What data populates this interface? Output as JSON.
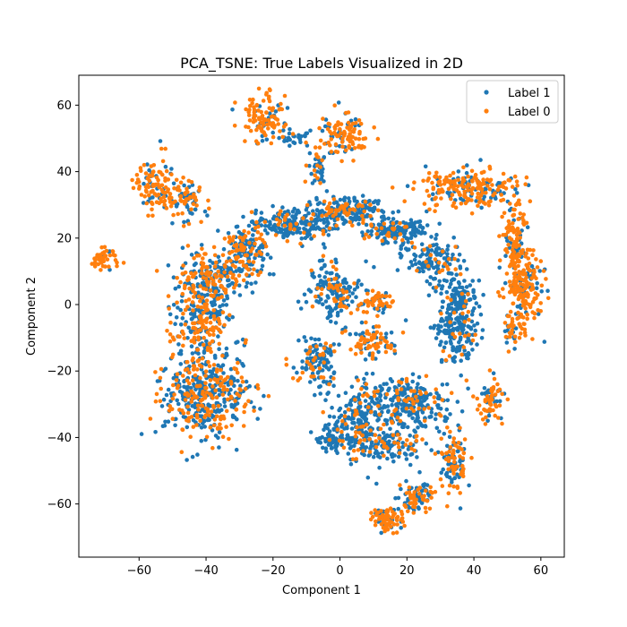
{
  "chart_data": {
    "type": "scatter",
    "title": "PCA_TSNE: True Labels Visualized in 2D",
    "xlabel": "Component 1",
    "ylabel": "Component 2",
    "xlim": [
      -78,
      67
    ],
    "ylim": [
      -76,
      69
    ],
    "xticks": [
      -60,
      -40,
      -20,
      0,
      20,
      40,
      60
    ],
    "yticks": [
      -60,
      -40,
      -20,
      0,
      20,
      40,
      60
    ],
    "grid": false,
    "legend_position": "top-right",
    "legend": [
      {
        "name": "Label 1",
        "color": "#1f77b4"
      },
      {
        "name": "Label 0",
        "color": "#ff7f0e"
      }
    ],
    "clusters": [
      {
        "cx": -70,
        "cy": 14,
        "rx": 3,
        "ry": 3,
        "n": 45,
        "blue_frac": 0.1
      },
      {
        "cx": -55,
        "cy": 36,
        "rx": 5,
        "ry": 7,
        "n": 110,
        "blue_frac": 0.25
      },
      {
        "cx": -46,
        "cy": 32,
        "rx": 4,
        "ry": 5,
        "n": 80,
        "blue_frac": 0.45
      },
      {
        "cx": -22,
        "cy": 56,
        "rx": 5,
        "ry": 5,
        "n": 110,
        "blue_frac": 0.2
      },
      {
        "cx": -14,
        "cy": 50,
        "rx": 4,
        "ry": 2,
        "n": 30,
        "blue_frac": 0.7
      },
      {
        "cx": -7,
        "cy": 41,
        "rx": 3,
        "ry": 5,
        "n": 40,
        "blue_frac": 0.7
      },
      {
        "cx": 1,
        "cy": 51,
        "rx": 5,
        "ry": 5,
        "n": 110,
        "blue_frac": 0.25
      },
      {
        "cx": -2,
        "cy": 4,
        "rx": 6,
        "ry": 7,
        "n": 170,
        "blue_frac": 0.78
      },
      {
        "cx": 11,
        "cy": 1,
        "rx": 4,
        "ry": 3,
        "n": 55,
        "blue_frac": 0.3
      },
      {
        "cx": -7,
        "cy": -17,
        "rx": 5,
        "ry": 6,
        "n": 130,
        "blue_frac": 0.75
      },
      {
        "cx": 10,
        "cy": -11,
        "rx": 6,
        "ry": 4,
        "n": 90,
        "blue_frac": 0.3
      },
      {
        "cx": -40,
        "cy": -27,
        "rx": 10,
        "ry": 10,
        "n": 480,
        "blue_frac": 0.6
      },
      {
        "cx": -42,
        "cy": -5,
        "rx": 7,
        "ry": 9,
        "n": 220,
        "blue_frac": 0.6
      },
      {
        "cx": -38,
        "cy": 8,
        "rx": 8,
        "ry": 7,
        "n": 230,
        "blue_frac": 0.55
      },
      {
        "cx": -28,
        "cy": 16,
        "rx": 6,
        "ry": 6,
        "n": 160,
        "blue_frac": 0.7
      },
      {
        "cx": -14,
        "cy": 24,
        "rx": 8,
        "ry": 4,
        "n": 190,
        "blue_frac": 0.85
      },
      {
        "cx": 2,
        "cy": 28,
        "rx": 8,
        "ry": 3,
        "n": 200,
        "blue_frac": 0.75
      },
      {
        "cx": 17,
        "cy": 22,
        "rx": 7,
        "ry": 3,
        "n": 170,
        "blue_frac": 0.85
      },
      {
        "cx": 28,
        "cy": 13,
        "rx": 6,
        "ry": 5,
        "n": 130,
        "blue_frac": 0.85
      },
      {
        "cx": 36,
        "cy": 2,
        "rx": 4,
        "ry": 6,
        "n": 100,
        "blue_frac": 0.85
      },
      {
        "cx": 35,
        "cy": -8,
        "rx": 5,
        "ry": 7,
        "n": 170,
        "blue_frac": 0.92
      },
      {
        "cx": 38,
        "cy": 35,
        "rx": 11,
        "ry": 4,
        "n": 250,
        "blue_frac": 0.35
      },
      {
        "cx": 52,
        "cy": 20,
        "rx": 3,
        "ry": 8,
        "n": 110,
        "blue_frac": 0.3
      },
      {
        "cx": 55,
        "cy": 5,
        "rx": 4,
        "ry": 10,
        "n": 200,
        "blue_frac": 0.2
      },
      {
        "cx": 52,
        "cy": -8,
        "rx": 2,
        "ry": 3,
        "n": 30,
        "blue_frac": 0.3
      },
      {
        "cx": 45,
        "cy": -29,
        "rx": 3,
        "ry": 6,
        "n": 75,
        "blue_frac": 0.4
      },
      {
        "cx": -3,
        "cy": -40,
        "rx": 4,
        "ry": 3,
        "n": 60,
        "blue_frac": 0.85
      },
      {
        "cx": 5,
        "cy": -35,
        "rx": 6,
        "ry": 9,
        "n": 200,
        "blue_frac": 0.8
      },
      {
        "cx": 20,
        "cy": -30,
        "rx": 10,
        "ry": 6,
        "n": 300,
        "blue_frac": 0.8
      },
      {
        "cx": 15,
        "cy": -43,
        "rx": 8,
        "ry": 4,
        "n": 110,
        "blue_frac": 0.75
      },
      {
        "cx": 34,
        "cy": -48,
        "rx": 3,
        "ry": 7,
        "n": 110,
        "blue_frac": 0.5
      },
      {
        "cx": 23,
        "cy": -58,
        "rx": 4,
        "ry": 3,
        "n": 80,
        "blue_frac": 0.5
      },
      {
        "cx": 14,
        "cy": -65,
        "rx": 4,
        "ry": 3,
        "n": 90,
        "blue_frac": 0.35
      }
    ]
  }
}
